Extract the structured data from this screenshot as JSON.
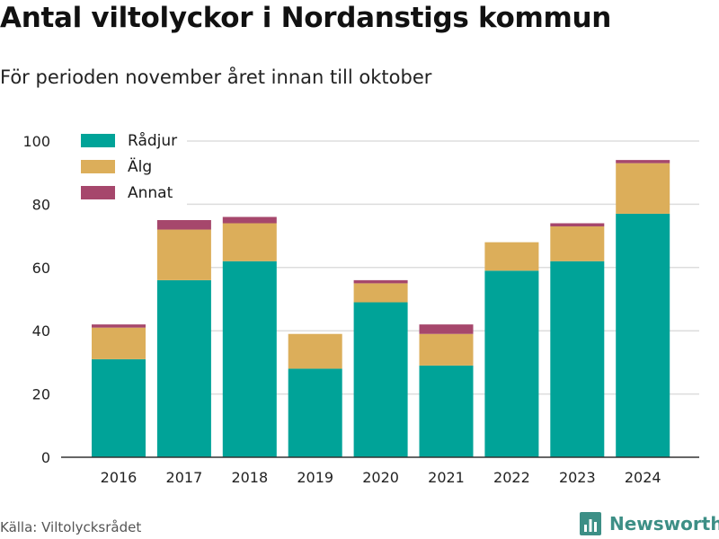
{
  "title": "Antal viltolyckor i Nordanstigs kommun",
  "subtitle": "För perioden november året innan till oktober",
  "source": "Källa: Viltolycksrådet",
  "brand": {
    "name": "Newsworthy",
    "icon": "bar-chart-logo-icon"
  },
  "colors": {
    "radjur": "#00a398",
    "alg": "#dcae5a",
    "annat": "#a6476c",
    "grid": "#dddddd",
    "brand": "#3d8f86"
  },
  "chart_data": {
    "type": "bar",
    "stacked": true,
    "categories": [
      "2016",
      "2017",
      "2018",
      "2019",
      "2020",
      "2021",
      "2022",
      "2023",
      "2024"
    ],
    "series": [
      {
        "name": "Rådjur",
        "values": [
          31,
          56,
          62,
          28,
          49,
          29,
          59,
          62,
          77
        ]
      },
      {
        "name": "Älg",
        "values": [
          10,
          16,
          12,
          11,
          6,
          10,
          9,
          11,
          16
        ]
      },
      {
        "name": "Annat",
        "values": [
          1,
          3,
          2,
          0,
          1,
          3,
          0,
          1,
          1
        ]
      }
    ],
    "ylim": [
      0,
      100
    ],
    "yticks": [
      0,
      20,
      40,
      60,
      80,
      100
    ],
    "grid": true,
    "legend": "top-left"
  }
}
